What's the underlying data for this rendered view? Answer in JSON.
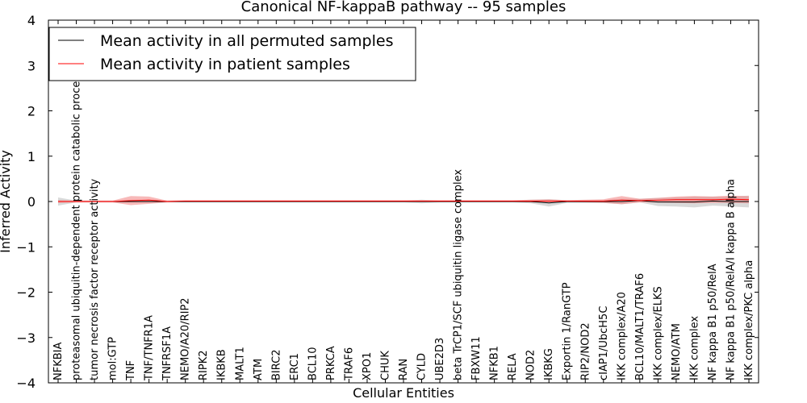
{
  "chart_data": {
    "type": "line",
    "title": "Canonical NF-kappaB pathway -- 95 samples",
    "xlabel": "Cellular Entities",
    "ylabel": "Inferred Activity",
    "ylim": [
      -4,
      4
    ],
    "yticks": [
      4,
      3,
      2,
      1,
      0,
      -1,
      -2,
      -3,
      -4
    ],
    "ytick_labels": [
      "4",
      "3",
      "2",
      "1",
      "0",
      "−1",
      "−2",
      "−3",
      "−4"
    ],
    "legend_location": "top-left",
    "categories": [
      "NFKBIA",
      "proteasomal ubiquitin-dependent protein catabolic process",
      "tumor necrosis factor receptor activity",
      "mol:GTP",
      "TNF",
      "TNF/TNFR1A",
      "TNFRSF1A",
      "NEMO/A20/RIP2",
      "RIPK2",
      "IKBKB",
      "MALT1",
      "ATM",
      "BIRC2",
      "ERC1",
      "BCL10",
      "PRKCA",
      "TRAF6",
      "XPO1",
      "CHUK",
      "RAN",
      "CYLD",
      "UBE2D3",
      "beta TrCP1/SCF ubiquitin ligase complex",
      "FBXW11",
      "NFKB1",
      "RELA",
      "NOD2",
      "IKBKG",
      "Exportin 1/RanGTP",
      "RIP2/NOD2",
      "cIAP1/UbcH5C",
      "IKK complex/A20",
      "BCL10/MALT1/TRAF6",
      "IKK complex/ELKS",
      "NEMO/ATM",
      "IKK complex",
      "NF kappa B1 p50/RelA",
      "NF kappa B1 p50/RelA/I kappa B alpha",
      "IKK complex/PKC alpha"
    ],
    "series": [
      {
        "name": "Mean activity in all permuted samples",
        "color": "#000000",
        "band_color": "#a0a0a0",
        "values": [
          0.0,
          0.0,
          0.0,
          0.0,
          0.0,
          0.0,
          0.0,
          0.0,
          0.0,
          0.0,
          0.0,
          0.0,
          0.0,
          0.0,
          0.0,
          0.0,
          0.0,
          0.0,
          0.0,
          0.0,
          0.0,
          0.0,
          0.0,
          0.0,
          0.0,
          0.0,
          0.0,
          -0.03,
          0.0,
          0.0,
          0.0,
          0.0,
          0.02,
          -0.01,
          -0.01,
          -0.01,
          0.01,
          0.0,
          0.0
        ],
        "band": [
          0.09,
          0.02,
          0.02,
          0.02,
          0.02,
          0.02,
          0.02,
          0.02,
          0.02,
          0.02,
          0.02,
          0.02,
          0.02,
          0.02,
          0.02,
          0.02,
          0.02,
          0.02,
          0.02,
          0.02,
          0.04,
          0.02,
          0.02,
          0.02,
          0.02,
          0.02,
          0.04,
          0.08,
          0.03,
          0.03,
          0.03,
          0.06,
          0.04,
          0.09,
          0.1,
          0.12,
          0.1,
          0.11,
          0.13
        ]
      },
      {
        "name": "Mean activity in patient samples",
        "color": "#ff0000",
        "band_color": "#f08080",
        "values": [
          0.0,
          0.0,
          0.0,
          0.0,
          0.02,
          0.03,
          0.0,
          0.01,
          0.01,
          0.01,
          0.01,
          0.01,
          0.01,
          0.01,
          0.01,
          0.01,
          0.01,
          0.01,
          0.01,
          0.01,
          0.01,
          0.01,
          0.01,
          0.01,
          0.01,
          0.01,
          0.01,
          0.01,
          0.01,
          0.01,
          0.01,
          0.03,
          0.02,
          0.03,
          0.04,
          0.04,
          0.04,
          0.05,
          0.04
        ],
        "band": [
          0.03,
          0.02,
          0.02,
          0.02,
          0.1,
          0.08,
          0.02,
          0.02,
          0.02,
          0.02,
          0.02,
          0.02,
          0.02,
          0.02,
          0.02,
          0.02,
          0.02,
          0.02,
          0.02,
          0.02,
          0.02,
          0.02,
          0.02,
          0.02,
          0.02,
          0.02,
          0.03,
          0.04,
          0.02,
          0.03,
          0.04,
          0.09,
          0.04,
          0.05,
          0.07,
          0.08,
          0.07,
          0.08,
          0.08
        ]
      }
    ]
  }
}
